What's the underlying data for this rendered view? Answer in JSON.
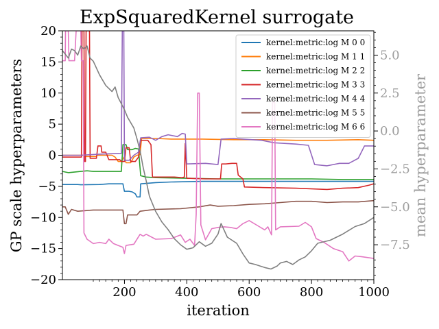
{
  "chart_data": {
    "type": "line",
    "title": "ExpSquaredKernel surrogate",
    "xlabel": "iteration",
    "ylabel": "GP scale hyperparameters",
    "ylabel_right": "mean hyperparameter",
    "xlim": [
      1,
      1000
    ],
    "ylim": [
      -20,
      20
    ],
    "ylim_right": [
      -9.8,
      6.6
    ],
    "xticks": [
      200,
      400,
      600,
      800,
      1000
    ],
    "yticks": [
      -20,
      -15,
      -10,
      -5,
      0,
      5,
      10,
      15,
      20
    ],
    "yticks_right": [
      -7.5,
      -5.0,
      -2.5,
      0.0,
      2.5,
      5.0
    ],
    "legend_position": "top-right",
    "grid": false,
    "series": [
      {
        "name": "kernel:metric:log M 0 0",
        "color": "#1f77b4",
        "points": [
          [
            1,
            -4.7
          ],
          [
            50,
            -4.7
          ],
          [
            60,
            -4.75
          ],
          [
            120,
            -4.7
          ],
          [
            150,
            -4.6
          ],
          [
            195,
            -4.6
          ],
          [
            200,
            -5.8
          ],
          [
            215,
            -5.8
          ],
          [
            225,
            -5.9
          ],
          [
            235,
            -6.2
          ],
          [
            240,
            -6.7
          ],
          [
            250,
            -6.7
          ],
          [
            252,
            -4.6
          ],
          [
            300,
            -4.4
          ],
          [
            350,
            -4.3
          ],
          [
            450,
            -4.2
          ],
          [
            550,
            -4.2
          ],
          [
            650,
            -4.2
          ],
          [
            750,
            -4.2
          ],
          [
            850,
            -4.2
          ],
          [
            950,
            -4.2
          ],
          [
            1000,
            -4.2
          ]
        ]
      },
      {
        "name": "kernel:metric:log M 1 1",
        "color": "#ff7f0e",
        "points": [
          [
            1,
            0.0
          ],
          [
            70,
            0.0
          ],
          [
            72,
            -0.2
          ],
          [
            110,
            -0.2
          ],
          [
            112,
            0.0
          ],
          [
            160,
            0.0
          ],
          [
            170,
            -0.3
          ],
          [
            180,
            -1.0
          ],
          [
            190,
            -1.0
          ],
          [
            200,
            -0.2
          ],
          [
            205,
            -1.2
          ],
          [
            220,
            -1.2
          ],
          [
            230,
            -0.3
          ],
          [
            240,
            0.0
          ],
          [
            250,
            0.1
          ],
          [
            255,
            2.7
          ],
          [
            300,
            2.7
          ],
          [
            350,
            2.6
          ],
          [
            450,
            2.6
          ],
          [
            550,
            2.5
          ],
          [
            650,
            2.5
          ],
          [
            750,
            2.4
          ],
          [
            850,
            2.4
          ],
          [
            950,
            2.5
          ],
          [
            1000,
            2.4
          ]
        ]
      },
      {
        "name": "kernel:metric:log M 2 2",
        "color": "#2ca02c",
        "points": [
          [
            1,
            -2.6
          ],
          [
            20,
            -2.8
          ],
          [
            60,
            -2.6
          ],
          [
            80,
            -2.5
          ],
          [
            100,
            -2.6
          ],
          [
            150,
            -2.6
          ],
          [
            190,
            -2.6
          ],
          [
            195,
            1.7
          ],
          [
            205,
            1.7
          ],
          [
            210,
            0.9
          ],
          [
            225,
            0.9
          ],
          [
            235,
            1.1
          ],
          [
            245,
            1.0
          ],
          [
            252,
            -3.3
          ],
          [
            270,
            -3.5
          ],
          [
            300,
            -3.6
          ],
          [
            400,
            -3.7
          ],
          [
            500,
            -3.8
          ],
          [
            600,
            -3.8
          ],
          [
            700,
            -3.8
          ],
          [
            800,
            -3.8
          ],
          [
            900,
            -3.9
          ],
          [
            1000,
            -3.9
          ]
        ]
      },
      {
        "name": "kernel:metric:log M 3 3",
        "color": "#d62728",
        "points": [
          [
            1,
            -0.3
          ],
          [
            50,
            -0.3
          ],
          [
            62,
            -0.3
          ],
          [
            64,
            20.0
          ],
          [
            70,
            20.0
          ],
          [
            72,
            -1.0
          ],
          [
            75,
            -1.0
          ],
          [
            77,
            20.0
          ],
          [
            85,
            20.0
          ],
          [
            88,
            20.0
          ],
          [
            90,
            -0.5
          ],
          [
            110,
            -0.5
          ],
          [
            115,
            1.5
          ],
          [
            125,
            1.5
          ],
          [
            127,
            0.5
          ],
          [
            140,
            0.5
          ],
          [
            150,
            -0.7
          ],
          [
            185,
            -0.7
          ],
          [
            190,
            -1.0
          ],
          [
            200,
            -1.0
          ],
          [
            205,
            1.2
          ],
          [
            215,
            1.2
          ],
          [
            220,
            -1.0
          ],
          [
            235,
            -1.0
          ],
          [
            245,
            -0.3
          ],
          [
            252,
            2.4
          ],
          [
            275,
            2.4
          ],
          [
            285,
            1.7
          ],
          [
            290,
            -3.5
          ],
          [
            360,
            -3.5
          ],
          [
            385,
            -3.6
          ],
          [
            392,
            -3.5
          ],
          [
            395,
            1.9
          ],
          [
            400,
            -3.7
          ],
          [
            460,
            -3.8
          ],
          [
            508,
            -3.8
          ],
          [
            512,
            -1.4
          ],
          [
            525,
            -1.4
          ],
          [
            545,
            -1.3
          ],
          [
            560,
            -1.3
          ],
          [
            565,
            -3.2
          ],
          [
            580,
            -3.8
          ],
          [
            585,
            -5.1
          ],
          [
            650,
            -5.2
          ],
          [
            750,
            -5.3
          ],
          [
            850,
            -5.5
          ],
          [
            900,
            -5.3
          ],
          [
            950,
            -5.2
          ],
          [
            985,
            -4.8
          ],
          [
            1000,
            -4.6
          ]
        ]
      },
      {
        "name": "kernel:metric:log M 4 4",
        "color": "#9467bd",
        "points": [
          [
            1,
            0.0
          ],
          [
            60,
            0.0
          ],
          [
            130,
            0.2
          ],
          [
            190,
            0.3
          ],
          [
            193,
            20.0
          ],
          [
            198,
            20.0
          ],
          [
            200,
            -0.8
          ],
          [
            215,
            -0.8
          ],
          [
            230,
            0.0
          ],
          [
            245,
            0.5
          ],
          [
            252,
            2.8
          ],
          [
            280,
            2.9
          ],
          [
            300,
            2.4
          ],
          [
            320,
            3.0
          ],
          [
            340,
            3.3
          ],
          [
            370,
            3.0
          ],
          [
            385,
            3.5
          ],
          [
            395,
            3.4
          ],
          [
            400,
            -1.4
          ],
          [
            460,
            -1.3
          ],
          [
            500,
            -1.5
          ],
          [
            510,
            2.6
          ],
          [
            550,
            2.7
          ],
          [
            580,
            2.6
          ],
          [
            640,
            2.4
          ],
          [
            680,
            2.0
          ],
          [
            750,
            1.8
          ],
          [
            790,
            1.6
          ],
          [
            810,
            -1.5
          ],
          [
            850,
            -1.7
          ],
          [
            890,
            -1.3
          ],
          [
            920,
            -1.3
          ],
          [
            950,
            -0.5
          ],
          [
            970,
            1.5
          ],
          [
            1000,
            1.5
          ]
        ]
      },
      {
        "name": "kernel:metric:log M 5 5",
        "color": "#8c564b",
        "points": [
          [
            1,
            -8.3
          ],
          [
            10,
            -8.3
          ],
          [
            20,
            -9.5
          ],
          [
            30,
            -8.7
          ],
          [
            50,
            -9.0
          ],
          [
            100,
            -8.8
          ],
          [
            150,
            -8.8
          ],
          [
            195,
            -8.8
          ],
          [
            200,
            -11.0
          ],
          [
            205,
            -11.0
          ],
          [
            210,
            -9.6
          ],
          [
            240,
            -9.6
          ],
          [
            250,
            -9.0
          ],
          [
            280,
            -8.8
          ],
          [
            300,
            -8.7
          ],
          [
            380,
            -8.6
          ],
          [
            440,
            -8.3
          ],
          [
            475,
            -8.0
          ],
          [
            500,
            -8.2
          ],
          [
            550,
            -8.1
          ],
          [
            600,
            -7.9
          ],
          [
            650,
            -7.8
          ],
          [
            700,
            -7.6
          ],
          [
            750,
            -7.4
          ],
          [
            800,
            -7.4
          ],
          [
            850,
            -7.6
          ],
          [
            900,
            -7.5
          ],
          [
            950,
            -7.5
          ],
          [
            1000,
            -7.3
          ]
        ]
      },
      {
        "name": "kernel:metric:log M 6 6",
        "color": "#e377c2",
        "points": [
          [
            1,
            15.2
          ],
          [
            10,
            15.2
          ],
          [
            11,
            20.0
          ],
          [
            20,
            20.0
          ],
          [
            22,
            15.2
          ],
          [
            40,
            15.2
          ],
          [
            45,
            20.0
          ],
          [
            60,
            20.0
          ],
          [
            62,
            15.2
          ],
          [
            68,
            15.2
          ],
          [
            70,
            -12.5
          ],
          [
            80,
            -13.5
          ],
          [
            100,
            -14.2
          ],
          [
            120,
            -14.0
          ],
          [
            140,
            -14.2
          ],
          [
            150,
            -13.5
          ],
          [
            165,
            -14.2
          ],
          [
            180,
            -14.5
          ],
          [
            195,
            -14.8
          ],
          [
            200,
            -15.8
          ],
          [
            205,
            -14.5
          ],
          [
            230,
            -14.3
          ],
          [
            250,
            -12.7
          ],
          [
            260,
            -13.0
          ],
          [
            270,
            -12.7
          ],
          [
            300,
            -13.5
          ],
          [
            350,
            -13.4
          ],
          [
            380,
            -12.8
          ],
          [
            395,
            -14.0
          ],
          [
            410,
            -13.5
          ],
          [
            425,
            -14.5
          ],
          [
            430,
            -9.5
          ],
          [
            435,
            10.0
          ],
          [
            440,
            10.0
          ],
          [
            445,
            -11.2
          ],
          [
            460,
            -13.6
          ],
          [
            480,
            -11.8
          ],
          [
            500,
            -11.6
          ],
          [
            520,
            -11.5
          ],
          [
            540,
            -11.6
          ],
          [
            560,
            -11.8
          ],
          [
            580,
            -11.0
          ],
          [
            600,
            -10.5
          ],
          [
            630,
            -11.4
          ],
          [
            650,
            -12.0
          ],
          [
            660,
            -11.5
          ],
          [
            672,
            -12.8
          ],
          [
            675,
            8.5
          ],
          [
            682,
            8.5
          ],
          [
            685,
            -12.0
          ],
          [
            700,
            -11.5
          ],
          [
            760,
            -11.4
          ],
          [
            780,
            -10.8
          ],
          [
            800,
            -11.5
          ],
          [
            815,
            -13.4
          ],
          [
            840,
            -14.0
          ],
          [
            870,
            -15.0
          ],
          [
            900,
            -15.5
          ],
          [
            920,
            -17.0
          ],
          [
            940,
            -16.2
          ],
          [
            960,
            -16.3
          ],
          [
            1000,
            -16.6
          ]
        ]
      },
      {
        "name": "",
        "color": "#808080",
        "axis": "right",
        "points": [
          [
            1,
            5.3
          ],
          [
            20,
            4.8
          ],
          [
            30,
            5.4
          ],
          [
            40,
            5.3
          ],
          [
            50,
            5.0
          ],
          [
            60,
            5.6
          ],
          [
            70,
            5.4
          ],
          [
            80,
            5.6
          ],
          [
            90,
            4.8
          ],
          [
            100,
            4.6
          ],
          [
            120,
            3.7
          ],
          [
            140,
            3.0
          ],
          [
            160,
            2.6
          ],
          [
            170,
            2.9
          ],
          [
            180,
            2.2
          ],
          [
            190,
            1.8
          ],
          [
            200,
            1.4
          ],
          [
            210,
            0.9
          ],
          [
            230,
            0.2
          ],
          [
            240,
            -0.5
          ],
          [
            250,
            -1.3
          ],
          [
            260,
            -2.4
          ],
          [
            270,
            -3.3
          ],
          [
            280,
            -4.3
          ],
          [
            300,
            -5.3
          ],
          [
            320,
            -6.0
          ],
          [
            340,
            -6.5
          ],
          [
            360,
            -7.1
          ],
          [
            380,
            -7.5
          ],
          [
            400,
            -7.8
          ],
          [
            420,
            -7.7
          ],
          [
            440,
            -7.3
          ],
          [
            460,
            -7.6
          ],
          [
            480,
            -7.4
          ],
          [
            500,
            -6.8
          ],
          [
            510,
            -6.1
          ],
          [
            530,
            -7.0
          ],
          [
            560,
            -7.4
          ],
          [
            580,
            -8.1
          ],
          [
            600,
            -8.7
          ],
          [
            620,
            -8.8
          ],
          [
            650,
            -9.0
          ],
          [
            670,
            -9.1
          ],
          [
            690,
            -8.9
          ],
          [
            700,
            -8.7
          ],
          [
            720,
            -8.6
          ],
          [
            740,
            -8.8
          ],
          [
            760,
            -8.5
          ],
          [
            780,
            -8.3
          ],
          [
            800,
            -7.9
          ],
          [
            820,
            -7.4
          ],
          [
            860,
            -7.2
          ],
          [
            900,
            -6.8
          ],
          [
            940,
            -6.3
          ],
          [
            970,
            -6.1
          ],
          [
            1000,
            -5.7
          ]
        ]
      }
    ]
  }
}
